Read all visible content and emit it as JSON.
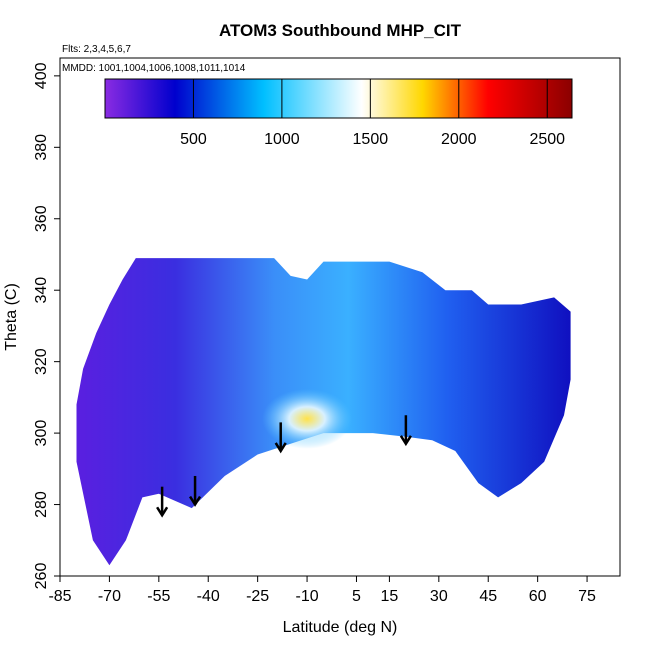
{
  "chart_data": {
    "type": "heatmap",
    "title": "ATOM3 Southbound MHP_CIT",
    "annotations": [
      "Flts: 2,3,4,5,6,7",
      "MMDD: 1001,1004,1006,1008,1011,1014"
    ],
    "xlabel": "Latitude (deg N)",
    "ylabel": "Theta (C)",
    "xlim": [
      -85,
      85
    ],
    "ylim": [
      260,
      405
    ],
    "x_ticks": [
      -85,
      -70,
      -55,
      -40,
      -25,
      -10,
      5,
      15,
      30,
      45,
      60,
      75
    ],
    "x_tick_labels": [
      "-85",
      "-70",
      "-55",
      "-40",
      "-25",
      "-10",
      "5",
      "15",
      "30",
      "45",
      "60",
      "75"
    ],
    "y_ticks": [
      260,
      280,
      300,
      320,
      340,
      360,
      380,
      400
    ],
    "y_tick_labels": [
      "260",
      "280",
      "300",
      "320",
      "340",
      "360",
      "380",
      "400"
    ],
    "colorbar": {
      "range": [
        0,
        2640
      ],
      "ticks": [
        500,
        1000,
        1500,
        2000,
        2500
      ],
      "tick_labels": [
        "500",
        "1000",
        "1500",
        "2000",
        "2500"
      ],
      "colors": [
        "#8a2be2",
        "#0000cd",
        "#00bfff",
        "#ffffff",
        "#ffd700",
        "#ff0000",
        "#8b0000"
      ]
    },
    "data_boundary_top": [
      [
        -80,
        308
      ],
      [
        -78,
        318
      ],
      [
        -74,
        328
      ],
      [
        -70,
        336
      ],
      [
        -66,
        343
      ],
      [
        -62,
        349
      ],
      [
        -20,
        349
      ],
      [
        -15,
        344
      ],
      [
        -10,
        343
      ],
      [
        -5,
        348
      ],
      [
        15,
        348
      ],
      [
        25,
        345
      ],
      [
        32,
        340
      ],
      [
        40,
        340
      ],
      [
        45,
        336
      ],
      [
        55,
        336
      ],
      [
        65,
        338
      ],
      [
        70,
        334
      ]
    ],
    "data_boundary_bottom": [
      [
        -80,
        292
      ],
      [
        -75,
        270
      ],
      [
        -70,
        263
      ],
      [
        -65,
        270
      ],
      [
        -60,
        282
      ],
      [
        -55,
        283
      ],
      [
        -45,
        279
      ],
      [
        -35,
        288
      ],
      [
        -25,
        294
      ],
      [
        -15,
        297
      ],
      [
        -5,
        300
      ],
      [
        10,
        300
      ],
      [
        20,
        299
      ],
      [
        28,
        298
      ],
      [
        35,
        295
      ],
      [
        42,
        286
      ],
      [
        48,
        282
      ],
      [
        55,
        286
      ],
      [
        62,
        292
      ],
      [
        68,
        305
      ],
      [
        70,
        315
      ]
    ],
    "arrows": [
      {
        "x": -54,
        "y_top": 285,
        "y_tip": 277
      },
      {
        "x": -44,
        "y_top": 288,
        "y_tip": 280
      },
      {
        "x": -18,
        "y_top": 303,
        "y_tip": 295
      },
      {
        "x": 20,
        "y_top": 305,
        "y_tip": 297
      }
    ],
    "grid": false,
    "legend": "top"
  }
}
